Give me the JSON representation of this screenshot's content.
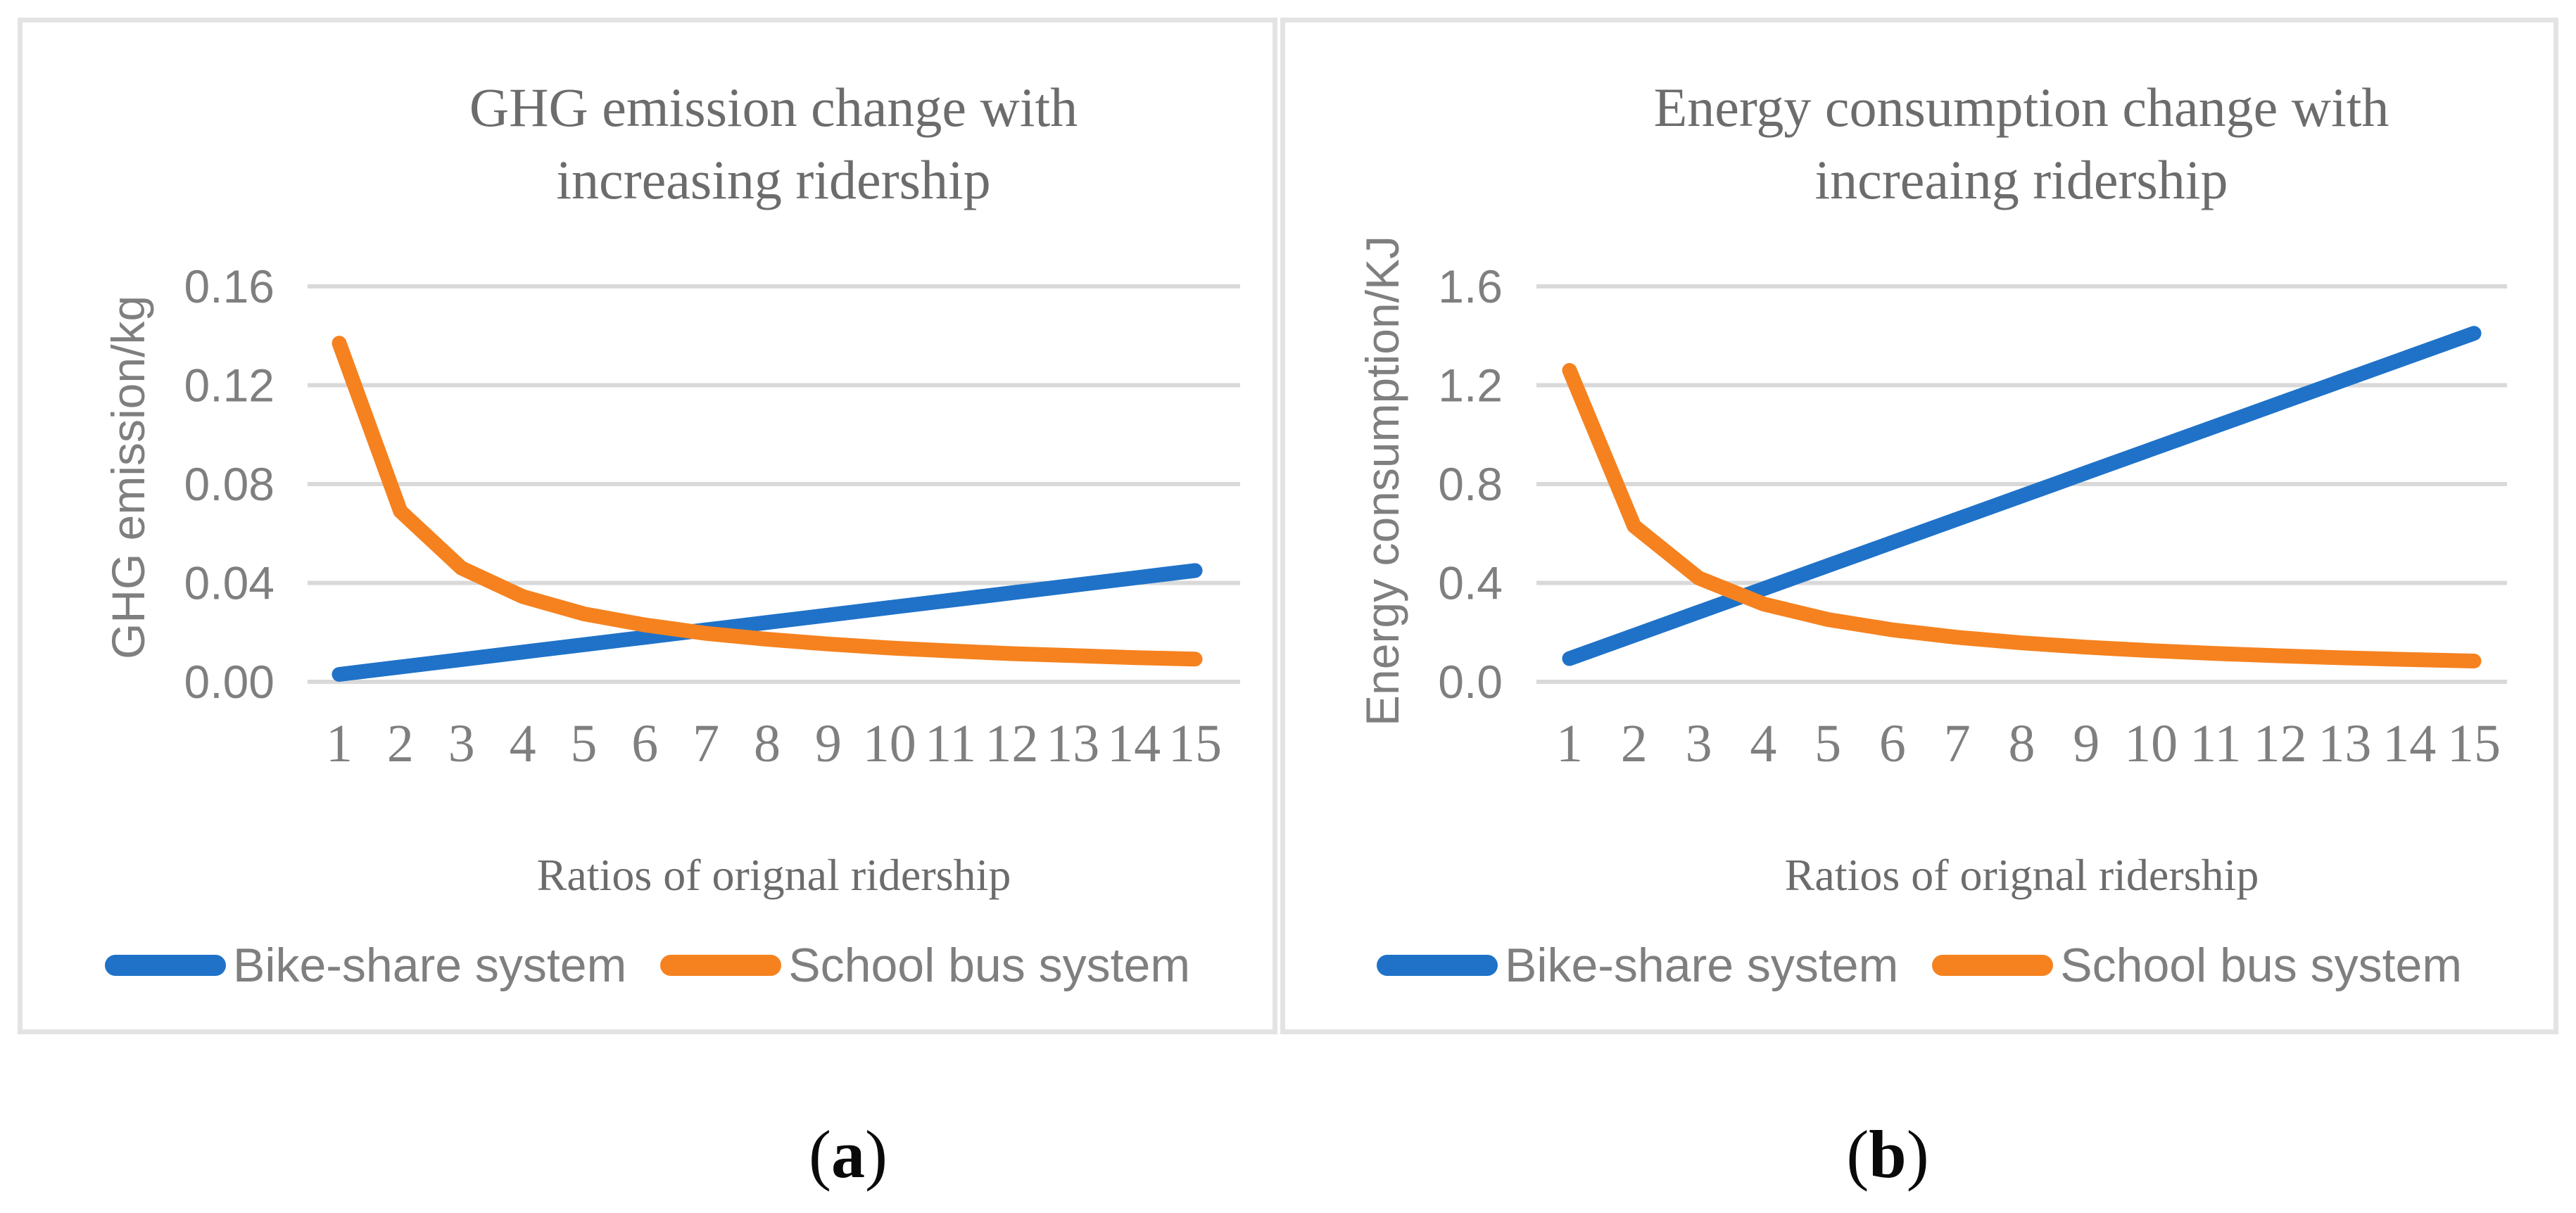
{
  "colors": {
    "series_blue": "#1f72c8",
    "series_orange": "#f5821f",
    "gridline": "#d9d9d9",
    "axis_text": "#7f7f7f",
    "title_text": "#6c6c6c",
    "panel_border": "#e3e3e3",
    "caption_text": "#0a0a0a"
  },
  "panels": [
    {
      "caption_prefix": "(",
      "caption_letter": "a",
      "caption_suffix": ")"
    },
    {
      "caption_prefix": "(",
      "caption_letter": "b",
      "caption_suffix": ")"
    }
  ],
  "chart_data": [
    {
      "type": "line",
      "title": "GHG emission change with increasing ridership",
      "xlabel": "Ratios of orignal ridership",
      "ylabel": "GHG emission/kg",
      "x": [
        1,
        2,
        3,
        4,
        5,
        6,
        7,
        8,
        9,
        10,
        11,
        12,
        13,
        14,
        15
      ],
      "ylim": [
        0,
        0.16
      ],
      "ytick_labels": [
        "0.00",
        "0.04",
        "0.08",
        "0.12",
        "0.16"
      ],
      "grid": true,
      "legend_position": "bottom",
      "series": [
        {
          "name": "Bike-share system",
          "color": "#1f72c8",
          "values": [
            0.003,
            0.006,
            0.009,
            0.012,
            0.015,
            0.018,
            0.021,
            0.024,
            0.027,
            0.03,
            0.033,
            0.036,
            0.039,
            0.042,
            0.045
          ]
        },
        {
          "name": "School bus system",
          "color": "#f5821f",
          "values": [
            0.137,
            0.069,
            0.046,
            0.0345,
            0.0275,
            0.023,
            0.0196,
            0.0172,
            0.0153,
            0.0137,
            0.0125,
            0.0114,
            0.0106,
            0.0098,
            0.0092
          ]
        }
      ]
    },
    {
      "type": "line",
      "title": "Energy consumption change with increaing ridership",
      "xlabel": "Ratios of orignal ridership",
      "ylabel": "Energy consumption/KJ",
      "x": [
        1,
        2,
        3,
        4,
        5,
        6,
        7,
        8,
        9,
        10,
        11,
        12,
        13,
        14,
        15
      ],
      "ylim": [
        0,
        1.6
      ],
      "ytick_labels": [
        "0.0",
        "0.4",
        "0.8",
        "1.2",
        "1.6"
      ],
      "grid": true,
      "legend_position": "bottom",
      "series": [
        {
          "name": "Bike-share system",
          "color": "#1f72c8",
          "values": [
            0.094,
            0.188,
            0.282,
            0.376,
            0.47,
            0.564,
            0.658,
            0.752,
            0.846,
            0.94,
            1.034,
            1.128,
            1.222,
            1.316,
            1.41
          ]
        },
        {
          "name": "School bus system",
          "color": "#f5821f",
          "values": [
            1.26,
            0.63,
            0.42,
            0.315,
            0.252,
            0.21,
            0.18,
            0.1575,
            0.14,
            0.126,
            0.1145,
            0.105,
            0.0969,
            0.09,
            0.084
          ]
        }
      ]
    }
  ]
}
